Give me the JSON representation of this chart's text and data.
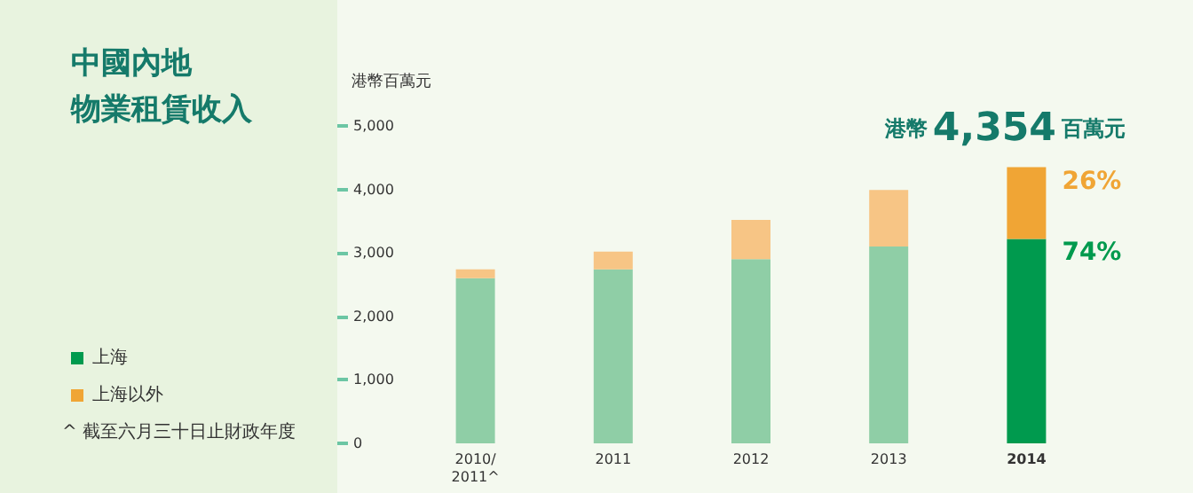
{
  "chart_data": {
    "type": "bar",
    "title": "中國內地物業租賃收入",
    "ylabel": "港幣百萬元",
    "categories": [
      "2010/\n2011^",
      "2011",
      "2012",
      "2013",
      "2014"
    ],
    "stacked": true,
    "series": [
      {
        "name": "上海",
        "color": "#009a4e",
        "colors": [
          "#8fcea6",
          "#8fcea6",
          "#8fcea6",
          "#8fcea6",
          "#009a4e"
        ],
        "values": [
          2600,
          2740,
          2900,
          3100,
          3220
        ]
      },
      {
        "name": "上海以外",
        "color": "#f0a535",
        "colors": [
          "#f7c585",
          "#f7c585",
          "#f7c585",
          "#f7c585",
          "#f0a535"
        ],
        "values": [
          140,
          280,
          620,
          890,
          1130
        ]
      }
    ],
    "ylim": [
      0,
      5000
    ],
    "yticks": [
      0,
      {
        "value": 1000,
        "label": "1,000"
      },
      {
        "value": 2000,
        "label": "2,000"
      },
      {
        "value": 3000,
        "label": "3,000"
      },
      {
        "value": 4000,
        "label": "4,000"
      },
      {
        "value": 5000,
        "label": "5,000"
      }
    ],
    "grid": false,
    "legend": "left",
    "annotations": [
      {
        "text": "港幣4,354百萬元",
        "x": "2014",
        "y": 4350
      },
      {
        "text": "26%",
        "x": "2014",
        "y": 4350
      },
      {
        "text": "74%",
        "x": "2014",
        "y": 3220
      },
      "^ 截至六月三十日止財政年度"
    ]
  }
}
